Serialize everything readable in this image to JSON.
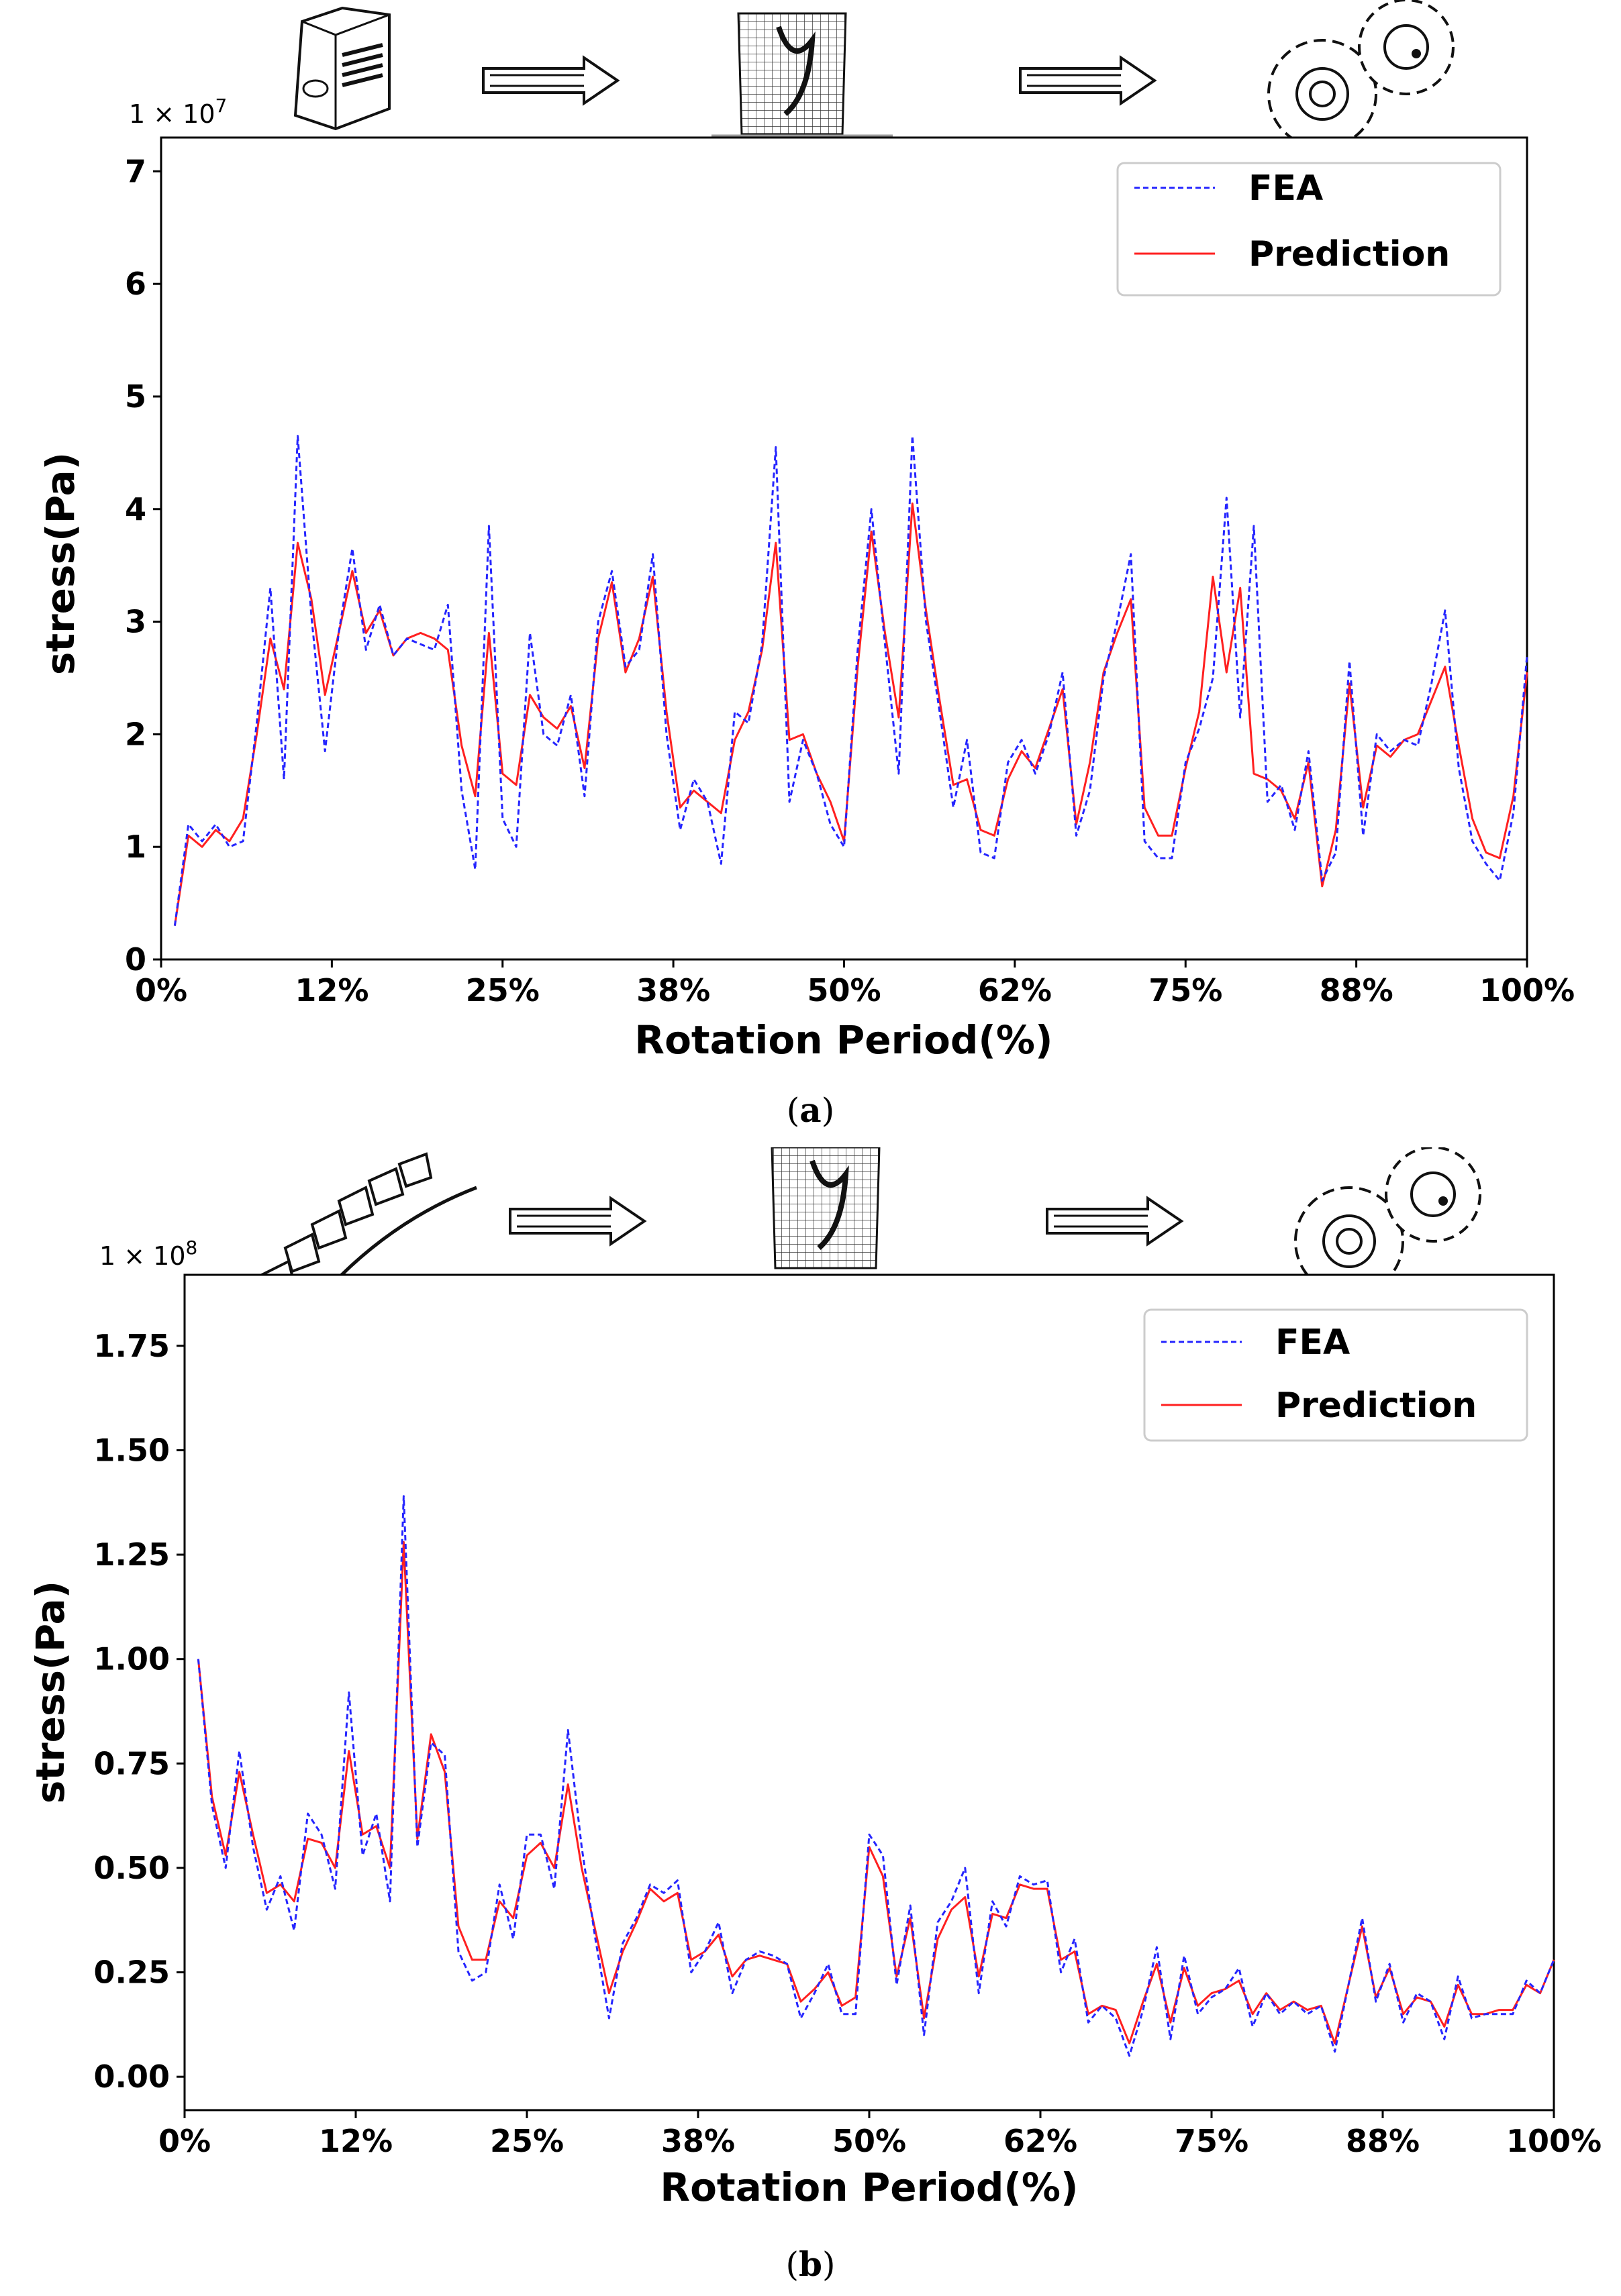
{
  "figure": {
    "caption_a": "a",
    "caption_b": "b",
    "arrow_icon": "double-outline-arrow-icon",
    "icons_a": [
      "gear-blank-icon",
      "fea-mesh-icon",
      "gear-pair-icon"
    ],
    "icons_b": [
      "gear-teeth-strip-icon",
      "fea-mesh-icon",
      "gear-pair-icon"
    ]
  },
  "colors": {
    "fea": "#2525ff",
    "prediction": "#ff2020",
    "axis": "#000000"
  },
  "chart_data": [
    {
      "type": "line",
      "id": "a",
      "multiplier_base": "1 × 10",
      "multiplier_exp": "7",
      "xlabel": "Rotation Period(%)",
      "ylabel": "stress(Pa)",
      "xlim": [
        0,
        100
      ],
      "ylim": [
        0,
        7.3
      ],
      "xticks": [
        0,
        12.5,
        25,
        37.5,
        50,
        62.5,
        75,
        87.5,
        100
      ],
      "xtick_labels": [
        "0%",
        "12%",
        "25%",
        "38%",
        "50%",
        "62%",
        "75%",
        "88%",
        "100%"
      ],
      "yticks": [
        0,
        1,
        2,
        3,
        4,
        5,
        6,
        7
      ],
      "ytick_labels": [
        "0",
        "1",
        "2",
        "3",
        "4",
        "5",
        "6",
        "7"
      ],
      "legend": [
        "FEA",
        "Prediction"
      ],
      "series": [
        {
          "name": "FEA",
          "style": "dashed",
          "x": [
            1,
            2,
            3,
            4,
            5,
            6,
            7,
            8,
            9,
            10,
            11,
            12,
            13,
            14,
            15,
            16,
            17,
            18,
            19,
            20,
            21,
            22,
            23,
            24,
            25,
            26,
            27,
            28,
            29,
            30,
            31,
            32,
            33,
            34,
            35,
            36,
            37,
            38,
            39,
            40,
            41,
            42,
            43,
            44,
            45,
            46,
            47,
            48,
            49,
            50,
            51,
            52,
            53,
            54,
            55,
            56,
            57,
            58,
            59,
            60,
            61,
            62,
            63,
            64,
            65,
            66,
            67,
            68,
            69,
            70,
            71,
            72,
            73,
            74,
            75,
            76,
            77,
            78,
            79,
            80,
            81,
            82,
            83,
            84,
            85,
            86,
            87,
            88,
            89,
            90,
            91,
            92,
            93,
            94,
            95,
            96,
            97,
            98,
            99,
            100
          ],
          "values": [
            0.3,
            1.2,
            1.05,
            1.2,
            1.0,
            1.05,
            2.1,
            3.3,
            1.6,
            4.65,
            3.05,
            1.85,
            2.9,
            3.65,
            2.75,
            3.15,
            2.7,
            2.85,
            2.8,
            2.75,
            3.15,
            1.5,
            0.8,
            3.85,
            1.25,
            1.0,
            2.9,
            2.0,
            1.9,
            2.35,
            1.45,
            3.0,
            3.45,
            2.6,
            2.75,
            3.6,
            2.0,
            1.15,
            1.6,
            1.4,
            0.85,
            2.2,
            2.1,
            2.8,
            4.55,
            1.4,
            1.95,
            1.65,
            1.2,
            1.0,
            2.75,
            4.0,
            2.8,
            1.65,
            4.65,
            3.0,
            2.2,
            1.35,
            1.95,
            0.95,
            0.9,
            1.75,
            1.95,
            1.65,
            2.0,
            2.55,
            1.1,
            1.5,
            2.5,
            3.0,
            3.6,
            1.05,
            0.9,
            0.9,
            1.75,
            2.05,
            2.5,
            4.1,
            2.15,
            3.85,
            1.4,
            1.55,
            1.15,
            1.85,
            0.7,
            0.95,
            2.65,
            1.1,
            2.0,
            1.85,
            1.95,
            1.9,
            2.45,
            3.1,
            1.7,
            1.05,
            0.85,
            0.7,
            1.3,
            2.7
          ]
        },
        {
          "name": "Prediction",
          "style": "solid",
          "x": [
            1,
            2,
            3,
            4,
            5,
            6,
            7,
            8,
            9,
            10,
            11,
            12,
            13,
            14,
            15,
            16,
            17,
            18,
            19,
            20,
            21,
            22,
            23,
            24,
            25,
            26,
            27,
            28,
            29,
            30,
            31,
            32,
            33,
            34,
            35,
            36,
            37,
            38,
            39,
            40,
            41,
            42,
            43,
            44,
            45,
            46,
            47,
            48,
            49,
            50,
            51,
            52,
            53,
            54,
            55,
            56,
            57,
            58,
            59,
            60,
            61,
            62,
            63,
            64,
            65,
            66,
            67,
            68,
            69,
            70,
            71,
            72,
            73,
            74,
            75,
            76,
            77,
            78,
            79,
            80,
            81,
            82,
            83,
            84,
            85,
            86,
            87,
            88,
            89,
            90,
            91,
            92,
            93,
            94,
            95,
            96,
            97,
            98,
            99,
            100
          ],
          "values": [
            0.3,
            1.1,
            1.0,
            1.15,
            1.05,
            1.25,
            2.0,
            2.85,
            2.4,
            3.7,
            3.2,
            2.35,
            2.9,
            3.45,
            2.9,
            3.1,
            2.7,
            2.85,
            2.9,
            2.85,
            2.75,
            1.9,
            1.45,
            2.9,
            1.65,
            1.55,
            2.35,
            2.15,
            2.05,
            2.25,
            1.7,
            2.85,
            3.35,
            2.55,
            2.85,
            3.4,
            2.2,
            1.35,
            1.5,
            1.4,
            1.3,
            1.95,
            2.2,
            2.75,
            3.7,
            1.95,
            2.0,
            1.65,
            1.4,
            1.05,
            2.6,
            3.8,
            2.9,
            2.15,
            4.05,
            3.1,
            2.3,
            1.55,
            1.6,
            1.15,
            1.1,
            1.6,
            1.85,
            1.7,
            2.05,
            2.4,
            1.2,
            1.75,
            2.55,
            2.9,
            3.2,
            1.35,
            1.1,
            1.1,
            1.7,
            2.2,
            3.4,
            2.55,
            3.3,
            1.65,
            1.6,
            1.5,
            1.25,
            1.75,
            0.65,
            1.15,
            2.45,
            1.35,
            1.9,
            1.8,
            1.95,
            2.0,
            2.3,
            2.6,
            1.9,
            1.25,
            0.95,
            0.9,
            1.45,
            2.55
          ]
        }
      ]
    },
    {
      "type": "line",
      "id": "b",
      "multiplier_base": "1 × 10",
      "multiplier_exp": "8",
      "xlabel": "Rotation Period(%)",
      "ylabel": "stress(Pa)",
      "xlim": [
        0,
        100
      ],
      "ylim": [
        -0.08,
        1.92
      ],
      "xticks": [
        0,
        12.5,
        25,
        37.5,
        50,
        62.5,
        75,
        87.5,
        100
      ],
      "xtick_labels": [
        "0%",
        "12%",
        "25%",
        "38%",
        "50%",
        "62%",
        "75%",
        "88%",
        "100%"
      ],
      "yticks": [
        0,
        0.25,
        0.5,
        0.75,
        1.0,
        1.25,
        1.5,
        1.75
      ],
      "ytick_labels": [
        "0.00",
        "0.25",
        "0.50",
        "0.75",
        "1.00",
        "1.25",
        "1.50",
        "1.75"
      ],
      "legend": [
        "FEA",
        "Prediction"
      ],
      "series": [
        {
          "name": "FEA",
          "style": "dashed",
          "x": [
            1,
            2,
            3,
            4,
            5,
            6,
            7,
            8,
            9,
            10,
            11,
            12,
            13,
            14,
            15,
            16,
            17,
            18,
            19,
            20,
            21,
            22,
            23,
            24,
            25,
            26,
            27,
            28,
            29,
            30,
            31,
            32,
            33,
            34,
            35,
            36,
            37,
            38,
            39,
            40,
            41,
            42,
            43,
            44,
            45,
            46,
            47,
            48,
            49,
            50,
            51,
            52,
            53,
            54,
            55,
            56,
            57,
            58,
            59,
            60,
            61,
            62,
            63,
            64,
            65,
            66,
            67,
            68,
            69,
            70,
            71,
            72,
            73,
            74,
            75,
            76,
            77,
            78,
            79,
            80,
            81,
            82,
            83,
            84,
            85,
            86,
            87,
            88,
            89,
            90,
            91,
            92,
            93,
            94,
            95,
            96,
            97,
            98,
            99,
            100
          ],
          "values": [
            1.0,
            0.65,
            0.5,
            0.78,
            0.55,
            0.4,
            0.48,
            0.35,
            0.63,
            0.58,
            0.45,
            0.92,
            0.53,
            0.63,
            0.42,
            1.39,
            0.55,
            0.8,
            0.77,
            0.3,
            0.23,
            0.25,
            0.46,
            0.33,
            0.58,
            0.58,
            0.45,
            0.83,
            0.55,
            0.33,
            0.14,
            0.32,
            0.38,
            0.46,
            0.44,
            0.47,
            0.25,
            0.3,
            0.37,
            0.2,
            0.28,
            0.3,
            0.29,
            0.27,
            0.14,
            0.2,
            0.27,
            0.15,
            0.15,
            0.58,
            0.53,
            0.22,
            0.41,
            0.1,
            0.37,
            0.42,
            0.5,
            0.2,
            0.42,
            0.36,
            0.48,
            0.46,
            0.47,
            0.25,
            0.33,
            0.13,
            0.17,
            0.14,
            0.05,
            0.16,
            0.31,
            0.09,
            0.29,
            0.15,
            0.19,
            0.21,
            0.26,
            0.12,
            0.2,
            0.15,
            0.18,
            0.15,
            0.17,
            0.06,
            0.22,
            0.38,
            0.18,
            0.27,
            0.13,
            0.2,
            0.18,
            0.09,
            0.24,
            0.14,
            0.15,
            0.15,
            0.15,
            0.23,
            0.2,
            0.28
          ]
        },
        {
          "name": "Prediction",
          "style": "solid",
          "x": [
            1,
            2,
            3,
            4,
            5,
            6,
            7,
            8,
            9,
            10,
            11,
            12,
            13,
            14,
            15,
            16,
            17,
            18,
            19,
            20,
            21,
            22,
            23,
            24,
            25,
            26,
            27,
            28,
            29,
            30,
            31,
            32,
            33,
            34,
            35,
            36,
            37,
            38,
            39,
            40,
            41,
            42,
            43,
            44,
            45,
            46,
            47,
            48,
            49,
            50,
            51,
            52,
            53,
            54,
            55,
            56,
            57,
            58,
            59,
            60,
            61,
            62,
            63,
            64,
            65,
            66,
            67,
            68,
            69,
            70,
            71,
            72,
            73,
            74,
            75,
            76,
            77,
            78,
            79,
            80,
            81,
            82,
            83,
            84,
            85,
            86,
            87,
            88,
            89,
            90,
            91,
            92,
            93,
            94,
            95,
            96,
            97,
            98,
            99,
            100
          ],
          "values": [
            1.0,
            0.67,
            0.53,
            0.73,
            0.58,
            0.44,
            0.46,
            0.42,
            0.57,
            0.56,
            0.5,
            0.78,
            0.58,
            0.6,
            0.5,
            1.28,
            0.57,
            0.82,
            0.73,
            0.36,
            0.28,
            0.28,
            0.42,
            0.38,
            0.53,
            0.56,
            0.5,
            0.7,
            0.5,
            0.35,
            0.2,
            0.3,
            0.37,
            0.45,
            0.42,
            0.44,
            0.28,
            0.3,
            0.34,
            0.24,
            0.28,
            0.29,
            0.28,
            0.27,
            0.18,
            0.21,
            0.25,
            0.17,
            0.19,
            0.55,
            0.48,
            0.24,
            0.38,
            0.14,
            0.33,
            0.4,
            0.43,
            0.24,
            0.39,
            0.38,
            0.46,
            0.45,
            0.45,
            0.28,
            0.3,
            0.15,
            0.17,
            0.16,
            0.08,
            0.18,
            0.27,
            0.13,
            0.26,
            0.17,
            0.2,
            0.21,
            0.23,
            0.15,
            0.2,
            0.16,
            0.18,
            0.16,
            0.17,
            0.08,
            0.22,
            0.36,
            0.19,
            0.26,
            0.15,
            0.19,
            0.18,
            0.12,
            0.22,
            0.15,
            0.15,
            0.16,
            0.16,
            0.22,
            0.2,
            0.28
          ]
        }
      ]
    }
  ]
}
